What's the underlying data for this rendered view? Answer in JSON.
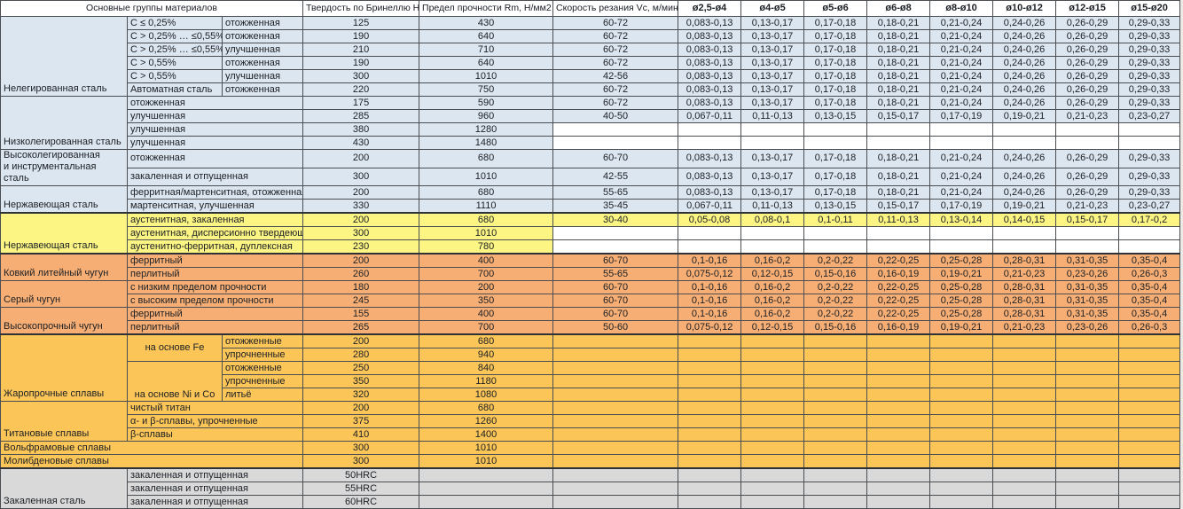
{
  "header": {
    "col_groups": "Основные группы материалов",
    "col_hb": "Твердость по Бринеллю HB",
    "col_rm": "Предел прочности Rm, Н/мм2",
    "col_vc": "Скорость резания Vc, м/мин",
    "diameters": [
      "ø2,5-ø4",
      "ø4-ø5",
      "ø5-ø6",
      "ø6-ø8",
      "ø8-ø10",
      "ø10-ø12",
      "ø12-ø15",
      "ø15-ø20"
    ]
  },
  "colors": {
    "steel_blue": "#dce6f1",
    "stainless_yellow": "#fcf583",
    "cast_iron_orange": "#f6ae74",
    "alloy_gold": "#fbc557",
    "hardened_gray": "#d9d9d9",
    "grid_line": "#4a4e53"
  },
  "feed_patterns": {
    "std": [
      "0,083-0,13",
      "0,13-0,17",
      "0,17-0,18",
      "0,18-0,21",
      "0,21-0,24",
      "0,24-0,26",
      "0,26-0,29",
      "0,29-0,33"
    ],
    "f2": [
      "0,067-0,11",
      "0,11-0,13",
      "0,13-0,15",
      "0,15-0,17",
      "0,17-0,19",
      "0,19-0,21",
      "0,21-0,23",
      "0,23-0,27"
    ],
    "f3": [
      "0,05-0,08",
      "0,08-0,1",
      "0,1-0,11",
      "0,11-0,13",
      "0,13-0,14",
      "0,14-0,15",
      "0,15-0,17",
      "0,17-0,2"
    ],
    "f4": [
      "0,1-0,16",
      "0,16-0,2",
      "0,2-0,22",
      "0,22-0,25",
      "0,25-0,28",
      "0,28-0,31",
      "0,31-0,35",
      "0,35-0,4"
    ],
    "f5": [
      "0,075-0,12",
      "0,12-0,15",
      "0,15-0,16",
      "0,16-0,19",
      "0,19-0,21",
      "0,21-0,23",
      "0,23-0,26",
      "0,26-0,3"
    ],
    "none": [
      "",
      "",
      "",
      "",
      "",
      "",
      "",
      ""
    ]
  },
  "rows": [
    {
      "theme": "blue",
      "a": {
        "t": "Нелегированная сталь",
        "rs": 6
      },
      "b": "C ≤ 0,25%",
      "c": "отожженная",
      "hb": "125",
      "rm": "430",
      "vc": "60-72",
      "feeds": "std"
    },
    {
      "theme": "blue",
      "b": "C > 0,25% … ≤0,55%",
      "c": "отожженная",
      "hb": "190",
      "rm": "640",
      "vc": "60-72",
      "feeds": "std"
    },
    {
      "theme": "blue",
      "b": "C > 0,25% … ≤0,55%",
      "c": "улучшенная",
      "hb": "210",
      "rm": "710",
      "vc": "60-72",
      "feeds": "std"
    },
    {
      "theme": "blue",
      "b": "C > 0,55%",
      "c": "отожженная",
      "hb": "190",
      "rm": "640",
      "vc": "60-72",
      "feeds": "std"
    },
    {
      "theme": "blue",
      "b": "C > 0,55%",
      "c": "улучшенная",
      "hb": "300",
      "rm": "1010",
      "vc": "42-56",
      "feeds": "std"
    },
    {
      "theme": "blue",
      "b": "Автоматная сталь",
      "c": "отожженная",
      "hb": "220",
      "rm": "750",
      "vc": "60-72",
      "feeds": "std"
    },
    {
      "theme": "blue",
      "a": {
        "t": "Низколегированная сталь",
        "rs": 4
      },
      "bc": "отожженная",
      "hb": "175",
      "rm": "590",
      "vc": "60-72",
      "feeds": "std"
    },
    {
      "theme": "blue",
      "bc": "улучшенная",
      "hb": "285",
      "rm": "960",
      "vc": "40-50",
      "feeds": "f2"
    },
    {
      "theme": "blue",
      "bc": "улучшенная",
      "hb": "380",
      "rm": "1280",
      "vc": "",
      "feeds": "none",
      "wt": true
    },
    {
      "theme": "blue",
      "bc": "улучшенная",
      "hb": "430",
      "rm": "1480",
      "vc": "",
      "feeds": "none",
      "wt": true
    },
    {
      "theme": "blue",
      "a": {
        "t": "Высоколегированная\n и инструментальная сталь",
        "rs": 2
      },
      "bc": "отожженная",
      "hb": "200",
      "rm": "680",
      "vc": "60-70",
      "feeds": "std"
    },
    {
      "theme": "blue",
      "bc": "закаленная и отпущенная",
      "hb": "300",
      "rm": "1010",
      "vc": "42-55",
      "feeds": "std"
    },
    {
      "theme": "blue",
      "a": {
        "t": "Нержавеющая сталь",
        "rs": 2
      },
      "bc": "ферритная/мартенситная, отожженная",
      "hb": "200",
      "rm": "680",
      "vc": "55-65",
      "feeds": "std"
    },
    {
      "theme": "blue",
      "bc": "мартенситная, улучшенная",
      "hb": "330",
      "rm": "1110",
      "vc": "35-45",
      "feeds": "f2"
    },
    {
      "theme": "yellow",
      "sep": true,
      "a": {
        "t": "Нержавеющая сталь",
        "rs": 3
      },
      "bc": "аустенитная, закаленная",
      "hb": "200",
      "rm": "680",
      "vc": "30-40",
      "feeds": "f3"
    },
    {
      "theme": "yellow",
      "bc": "аустенитная, дисперсионно твердеющая",
      "hb": "300",
      "rm": "1010",
      "vc": "",
      "feeds": "none",
      "wt": true
    },
    {
      "theme": "yellow",
      "bc": "аустенитно-ферритная, дуплексная",
      "hb": "230",
      "rm": "780",
      "vc": "",
      "feeds": "none",
      "wt": true
    },
    {
      "theme": "orange",
      "sep": true,
      "a": {
        "t": "Ковкий литейный чугун",
        "rs": 2
      },
      "bc": "ферритный",
      "hb": "200",
      "rm": "400",
      "vc": "60-70",
      "feeds": "f4"
    },
    {
      "theme": "orange",
      "bc": "перлитный",
      "hb": "260",
      "rm": "700",
      "vc": "55-65",
      "feeds": "f5"
    },
    {
      "theme": "orange",
      "a": {
        "t": "Серый чугун",
        "rs": 2
      },
      "bc": "с низким пределом прочности",
      "hb": "180",
      "rm": "200",
      "vc": "60-70",
      "feeds": "f4"
    },
    {
      "theme": "orange",
      "bc": "с высоким пределом прочности",
      "hb": "245",
      "rm": "350",
      "vc": "60-70",
      "feeds": "f4"
    },
    {
      "theme": "orange",
      "a": {
        "t": "Высокопрочный чугун",
        "rs": 2
      },
      "bc": "ферритный",
      "hb": "155",
      "rm": "400",
      "vc": "60-70",
      "feeds": "f4"
    },
    {
      "theme": "orange",
      "bc": "перлитный",
      "hb": "265",
      "rm": "700",
      "vc": "50-60",
      "feeds": "f5"
    },
    {
      "theme": "gold",
      "sep": true,
      "a": {
        "t": "Жаропрочные сплавы",
        "rs": 5
      },
      "bg": {
        "t": "на основе Fe",
        "rs": 2,
        "va": "mid"
      },
      "c": "отожженные",
      "hb": "200",
      "rm": "680",
      "vc": "",
      "feeds": "none"
    },
    {
      "theme": "gold",
      "c": "упрочненные",
      "hb": "280",
      "rm": "940",
      "vc": "",
      "feeds": "none"
    },
    {
      "theme": "gold",
      "bg": {
        "t": "на основе Ni и Co",
        "rs": 3,
        "va": "bot"
      },
      "c": "отожженные",
      "hb": "250",
      "rm": "840",
      "vc": "",
      "feeds": "none"
    },
    {
      "theme": "gold",
      "c": "упрочненные",
      "hb": "350",
      "rm": "1180",
      "vc": "",
      "feeds": "none"
    },
    {
      "theme": "gold",
      "c": "литьё",
      "hb": "320",
      "rm": "1080",
      "vc": "",
      "feeds": "none"
    },
    {
      "theme": "gold",
      "a": {
        "t": "Титановые сплавы",
        "rs": 3
      },
      "bc": "чистый титан",
      "hb": "200",
      "rm": "680",
      "vc": "",
      "feeds": "none"
    },
    {
      "theme": "gold",
      "bc": "α- и β-сплавы, упрочненные",
      "hb": "375",
      "rm": "1260",
      "vc": "",
      "feeds": "none"
    },
    {
      "theme": "gold",
      "bc": "β-сплавы",
      "hb": "410",
      "rm": "1400",
      "vc": "",
      "feeds": "none"
    },
    {
      "theme": "gold",
      "abc": "Вольфрамовые сплавы",
      "hb": "300",
      "rm": "1010",
      "vc": "",
      "feeds": "none"
    },
    {
      "theme": "gold",
      "abc": "Молибденовые сплавы",
      "hb": "300",
      "rm": "1010",
      "vc": "",
      "feeds": "none"
    },
    {
      "theme": "gray",
      "sep": true,
      "a": {
        "t": "Закаленная сталь",
        "rs": 3
      },
      "bc": "закаленная и отпущенная",
      "hb": "50HRC",
      "rm": "",
      "vc": "",
      "feeds": "none"
    },
    {
      "theme": "gray",
      "bc": "закаленная и отпущенная",
      "hb": "55HRC",
      "rm": "",
      "vc": "",
      "feeds": "none"
    },
    {
      "theme": "gray",
      "bc": "закаленная и отпущенная",
      "hb": "60HRC",
      "rm": "",
      "vc": "",
      "feeds": "none"
    }
  ]
}
